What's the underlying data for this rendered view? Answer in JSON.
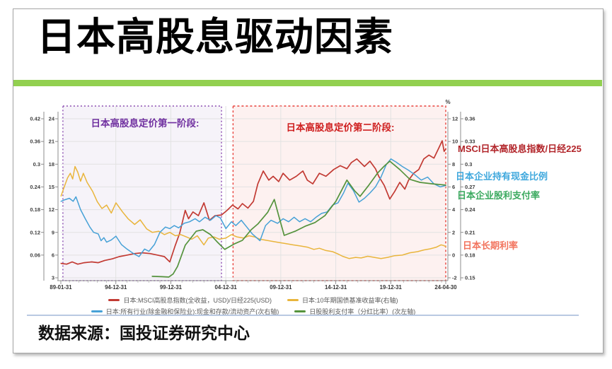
{
  "slide": {
    "title": "日本高股息驱动因素",
    "source": "数据来源：国投证券研究中心",
    "accent_bar_color": "#92d050"
  },
  "chart": {
    "annotations": [
      {
        "text": "MSCI日本高股息指数/日经225",
        "color": "#b2252a"
      },
      {
        "text": "日本企业持有现金比例",
        "color": "#3fa8dd"
      },
      {
        "text": "日本企业股利支付率",
        "color": "#3aa95e"
      },
      {
        "text": "日本长期利率",
        "color": "#f2745e"
      }
    ]
  },
  "legend": {
    "rows": [
      [
        {
          "color": "#c23a33",
          "label": "日本:MSCI高股息指数(全收益，USD)/日经225(USD)"
        },
        {
          "color": "#e9b53c",
          "label": "日本:10年期国债基准收益率(右轴)"
        }
      ],
      [
        {
          "color": "#46a1d7",
          "label": "日本:所有行业(除金融和保险业):现金和存款/流动资产(次右轴)"
        },
        {
          "color": "#55933d",
          "label": "日股股利支付率（分红比率）(次左轴)"
        }
      ]
    ]
  },
  "chart_data": {
    "type": "line",
    "grid": true,
    "legend_position": "bottom",
    "x_axis": {
      "labels": [
        "89-01-31",
        "94-12-31",
        "99-12-31",
        "04-12-31",
        "09-12-31",
        "14-12-31",
        "19-12-31",
        "24-04-30"
      ],
      "tick_years": [
        1989.08,
        1994.99,
        1999.99,
        2004.99,
        2009.99,
        2014.99,
        2019.99,
        2024.33
      ]
    },
    "axes": {
      "left_outer": {
        "ticks": [
          0.42,
          0.36,
          0.3,
          0.24,
          0.18,
          0.12,
          0.06
        ],
        "range": [
          0,
          0.42
        ]
      },
      "left_inner": {
        "ticks": [
          24,
          21,
          18,
          15,
          12,
          9,
          6,
          3
        ],
        "range": [
          3,
          24
        ]
      },
      "right_inner": {
        "unit": "%",
        "ticks": [
          12,
          10,
          8,
          6,
          4,
          2,
          0,
          -2
        ],
        "range": [
          -2,
          12
        ]
      },
      "right_outer": {
        "ticks": [
          0.36,
          0.33,
          0.3,
          0.27,
          0.24,
          0.21,
          0.18,
          0.15
        ],
        "range": [
          0.15,
          0.36
        ]
      }
    },
    "regions": [
      {
        "label": "日本高股息定价第一阶段:",
        "label_color": "#7030a0",
        "border": "#8a4bb0",
        "fill": "rgba(128,80,170,0.07)",
        "border_style": "dotted",
        "x_from": 1989.3,
        "x_to": 2004.6
      },
      {
        "label": "日本高股息定价第二阶段:",
        "label_color": "#cf2020",
        "border": "#e8403a",
        "fill": "rgba(235,80,60,0.08)",
        "border_style": "dashed",
        "x_from": 2005.65,
        "x_to": 2024.33
      }
    ],
    "series": [
      {
        "id": "msci",
        "name": "日本:MSCI高股息指数(全收益，USD)/日经225(USD)",
        "axis": "left_inner",
        "color": "#c23a33",
        "width": 1.7,
        "points": [
          [
            1989.1,
            4.9
          ],
          [
            1989.7,
            4.8
          ],
          [
            1990.3,
            5.1
          ],
          [
            1990.9,
            4.8
          ],
          [
            1991.6,
            5.0
          ],
          [
            1992.4,
            5.1
          ],
          [
            1993.1,
            5.0
          ],
          [
            1993.8,
            5.3
          ],
          [
            1994.6,
            5.5
          ],
          [
            1995.3,
            5.8
          ],
          [
            1996.0,
            6.0
          ],
          [
            1996.7,
            6.2
          ],
          [
            1997.4,
            6.3
          ],
          [
            1998.1,
            6.2
          ],
          [
            1998.8,
            6.0
          ],
          [
            1999.4,
            5.8
          ],
          [
            1999.9,
            5.1
          ],
          [
            2000.4,
            7.3
          ],
          [
            2000.8,
            8.9
          ],
          [
            2001.3,
            11.9
          ],
          [
            2001.6,
            10.8
          ],
          [
            2002.0,
            11.7
          ],
          [
            2002.5,
            11.2
          ],
          [
            2003.0,
            12.9
          ],
          [
            2003.5,
            10.6
          ],
          [
            2004.0,
            11.2
          ],
          [
            2004.6,
            11.3
          ],
          [
            2005.1,
            11.9
          ],
          [
            2005.6,
            12.6
          ],
          [
            2006.1,
            12.1
          ],
          [
            2006.5,
            12.8
          ],
          [
            2007.0,
            12.2
          ],
          [
            2007.5,
            13.1
          ],
          [
            2007.9,
            15.4
          ],
          [
            2008.4,
            17.1
          ],
          [
            2008.9,
            15.9
          ],
          [
            2009.3,
            16.4
          ],
          [
            2009.8,
            15.7
          ],
          [
            2010.2,
            16.8
          ],
          [
            2010.8,
            15.9
          ],
          [
            2011.4,
            16.4
          ],
          [
            2012.0,
            17.1
          ],
          [
            2012.4,
            15.9
          ],
          [
            2012.9,
            15.4
          ],
          [
            2013.5,
            16.8
          ],
          [
            2014.1,
            16.4
          ],
          [
            2014.8,
            17.3
          ],
          [
            2015.4,
            17.8
          ],
          [
            2016.0,
            17.4
          ],
          [
            2016.4,
            18.2
          ],
          [
            2016.9,
            18.7
          ],
          [
            2017.6,
            17.7
          ],
          [
            2018.1,
            18.4
          ],
          [
            2018.6,
            17.4
          ],
          [
            2018.9,
            16.4
          ],
          [
            2019.4,
            15.2
          ],
          [
            2019.9,
            13.4
          ],
          [
            2020.3,
            14.4
          ],
          [
            2020.7,
            15.6
          ],
          [
            2021.1,
            14.7
          ],
          [
            2021.4,
            15.9
          ],
          [
            2021.8,
            16.8
          ],
          [
            2022.2,
            17.3
          ],
          [
            2022.6,
            18.7
          ],
          [
            2023.0,
            19.2
          ],
          [
            2023.4,
            18.8
          ],
          [
            2023.8,
            20.2
          ],
          [
            2024.05,
            21.1
          ],
          [
            2024.2,
            19.7
          ],
          [
            2024.33,
            20.0
          ]
        ]
      },
      {
        "id": "jgb10y",
        "name": "日本:10年期国债基准收益率(右轴)",
        "axis": "right_inner",
        "color": "#e9b53c",
        "width": 1.5,
        "points": [
          [
            1989.1,
            5.2
          ],
          [
            1989.4,
            5.9
          ],
          [
            1989.8,
            6.8
          ],
          [
            1990.1,
            7.2
          ],
          [
            1990.35,
            6.7
          ],
          [
            1990.6,
            7.8
          ],
          [
            1990.9,
            7.3
          ],
          [
            1991.2,
            6.5
          ],
          [
            1991.5,
            7.2
          ],
          [
            1991.9,
            6.4
          ],
          [
            1992.5,
            5.6
          ],
          [
            1993.0,
            4.7
          ],
          [
            1993.5,
            4.1
          ],
          [
            1994.0,
            4.4
          ],
          [
            1994.5,
            3.7
          ],
          [
            1995.0,
            4.6
          ],
          [
            1995.6,
            3.8
          ],
          [
            1996.1,
            3.2
          ],
          [
            1996.7,
            2.7
          ],
          [
            1997.2,
            3.1
          ],
          [
            1997.8,
            2.3
          ],
          [
            1998.3,
            2.0
          ],
          [
            1998.9,
            2.1
          ],
          [
            1999.4,
            1.8
          ],
          [
            1999.9,
            2.0
          ],
          [
            2000.4,
            1.7
          ],
          [
            2000.9,
            1.8
          ],
          [
            2001.4,
            1.6
          ],
          [
            2001.9,
            1.4
          ],
          [
            2002.4,
            1.7
          ],
          [
            2003.0,
            0.9
          ],
          [
            2003.4,
            1.5
          ],
          [
            2003.9,
            1.6
          ],
          [
            2004.4,
            1.4
          ],
          [
            2005.0,
            1.5
          ],
          [
            2005.5,
            1.8
          ],
          [
            2006.0,
            1.6
          ],
          [
            2006.6,
            1.5
          ],
          [
            2007.1,
            1.7
          ],
          [
            2007.6,
            1.6
          ],
          [
            2008.1,
            1.4
          ],
          [
            2008.7,
            1.3
          ],
          [
            2009.3,
            1.2
          ],
          [
            2009.9,
            1.1
          ],
          [
            2010.5,
            1.0
          ],
          [
            2011.1,
            0.9
          ],
          [
            2011.8,
            0.8
          ],
          [
            2012.4,
            0.7
          ],
          [
            2013.0,
            0.5
          ],
          [
            2013.5,
            0.6
          ],
          [
            2014.1,
            0.4
          ],
          [
            2014.7,
            0.3
          ],
          [
            2015.2,
            0.1
          ],
          [
            2015.6,
            -0.1
          ],
          [
            2016.2,
            -0.3
          ],
          [
            2016.8,
            -0.2
          ],
          [
            2017.3,
            -0.25
          ],
          [
            2017.9,
            -0.1
          ],
          [
            2018.5,
            -0.2
          ],
          [
            2019.1,
            -0.3
          ],
          [
            2019.7,
            -0.2
          ],
          [
            2020.3,
            -0.05
          ],
          [
            2020.9,
            0.0
          ],
          [
            2021.5,
            0.2
          ],
          [
            2022.1,
            0.3
          ],
          [
            2022.6,
            0.45
          ],
          [
            2023.1,
            0.55
          ],
          [
            2023.6,
            0.7
          ],
          [
            2023.95,
            0.9
          ],
          [
            2024.15,
            0.85
          ],
          [
            2024.33,
            0.75
          ]
        ]
      },
      {
        "id": "cash",
        "name": "日本:所有行业(除金融和保险业):现金和存款/流动资产(次右轴)",
        "axis": "right_outer",
        "color": "#46a1d7",
        "width": 1.5,
        "points": [
          [
            1989.1,
            0.251
          ],
          [
            1989.5,
            0.253
          ],
          [
            1990.0,
            0.255
          ],
          [
            1990.4,
            0.251
          ],
          [
            1990.7,
            0.257
          ],
          [
            1991.2,
            0.24
          ],
          [
            1991.7,
            0.228
          ],
          [
            1992.2,
            0.217
          ],
          [
            1992.6,
            0.21
          ],
          [
            1993.1,
            0.208
          ],
          [
            1993.4,
            0.199
          ],
          [
            1993.7,
            0.203
          ],
          [
            1994.0,
            0.197
          ],
          [
            1994.5,
            0.2
          ],
          [
            1995.0,
            0.205
          ],
          [
            1995.5,
            0.194
          ],
          [
            1996.0,
            0.188
          ],
          [
            1996.6,
            0.182
          ],
          [
            1997.1,
            0.178
          ],
          [
            1997.6,
            0.188
          ],
          [
            1998.0,
            0.185
          ],
          [
            1998.5,
            0.194
          ],
          [
            1999.0,
            0.21
          ],
          [
            1999.5,
            0.217
          ],
          [
            1999.9,
            0.215
          ],
          [
            2000.3,
            0.219
          ],
          [
            2000.7,
            0.216
          ],
          [
            2001.2,
            0.222
          ],
          [
            2001.7,
            0.224
          ],
          [
            2002.2,
            0.228
          ],
          [
            2002.6,
            0.224
          ],
          [
            2003.1,
            0.23
          ],
          [
            2003.6,
            0.226
          ],
          [
            2004.1,
            0.232
          ],
          [
            2004.5,
            0.229
          ],
          [
            2005.0,
            0.215
          ],
          [
            2005.5,
            0.224
          ],
          [
            2005.9,
            0.219
          ],
          [
            2006.4,
            0.226
          ],
          [
            2006.9,
            0.217
          ],
          [
            2007.4,
            0.208
          ],
          [
            2008.1,
            0.199
          ],
          [
            2008.6,
            0.219
          ],
          [
            2009.1,
            0.226
          ],
          [
            2009.7,
            0.222
          ],
          [
            2010.2,
            0.228
          ],
          [
            2010.7,
            0.224
          ],
          [
            2011.2,
            0.23
          ],
          [
            2011.7,
            0.224
          ],
          [
            2012.2,
            0.228
          ],
          [
            2012.7,
            0.224
          ],
          [
            2013.2,
            0.23
          ],
          [
            2013.7,
            0.235
          ],
          [
            2014.2,
            0.237
          ],
          [
            2014.7,
            0.246
          ],
          [
            2015.2,
            0.249
          ],
          [
            2015.7,
            0.262
          ],
          [
            2016.1,
            0.275
          ],
          [
            2016.6,
            0.265
          ],
          [
            2017.1,
            0.25
          ],
          [
            2017.6,
            0.255
          ],
          [
            2018.1,
            0.262
          ],
          [
            2018.6,
            0.27
          ],
          [
            2019.1,
            0.283
          ],
          [
            2019.6,
            0.3
          ],
          [
            2020.0,
            0.307
          ],
          [
            2020.4,
            0.303
          ],
          [
            2020.9,
            0.297
          ],
          [
            2021.4,
            0.292
          ],
          [
            2021.9,
            0.286
          ],
          [
            2022.4,
            0.279
          ],
          [
            2022.9,
            0.283
          ],
          [
            2023.4,
            0.274
          ],
          [
            2023.9,
            0.27
          ],
          [
            2024.33,
            0.272
          ]
        ]
      },
      {
        "id": "payout",
        "name": "日股股利支付率（分红比率）(次左轴)",
        "axis": "left_outer",
        "color": "#55933d",
        "width": 1.7,
        "points": [
          [
            1998.3,
            0.004
          ],
          [
            1999.2,
            0.003
          ],
          [
            1999.8,
            0.002
          ],
          [
            2000.2,
            0.01
          ],
          [
            2000.6,
            0.03
          ],
          [
            2001.3,
            0.086
          ],
          [
            2002.3,
            0.123
          ],
          [
            2002.9,
            0.127
          ],
          [
            2003.6,
            0.114
          ],
          [
            2004.2,
            0.095
          ],
          [
            2004.9,
            0.075
          ],
          [
            2005.8,
            0.09
          ],
          [
            2006.5,
            0.099
          ],
          [
            2007.3,
            0.127
          ],
          [
            2007.9,
            0.142
          ],
          [
            2008.8,
            0.173
          ],
          [
            2009.4,
            0.207
          ],
          [
            2009.8,
            0.164
          ],
          [
            2010.3,
            0.112
          ],
          [
            2011.3,
            0.123
          ],
          [
            2012.2,
            0.136
          ],
          [
            2013.1,
            0.146
          ],
          [
            2014.0,
            0.164
          ],
          [
            2015.0,
            0.202
          ],
          [
            2016.0,
            0.258
          ],
          [
            2016.7,
            0.23
          ],
          [
            2017.2,
            0.215
          ],
          [
            2018.0,
            0.245
          ],
          [
            2018.8,
            0.277
          ],
          [
            2019.4,
            0.295
          ],
          [
            2019.9,
            0.308
          ],
          [
            2020.7,
            0.286
          ],
          [
            2021.5,
            0.26
          ],
          [
            2022.3,
            0.252
          ],
          [
            2023.3,
            0.248
          ],
          [
            2024.33,
            0.245
          ]
        ]
      }
    ]
  }
}
